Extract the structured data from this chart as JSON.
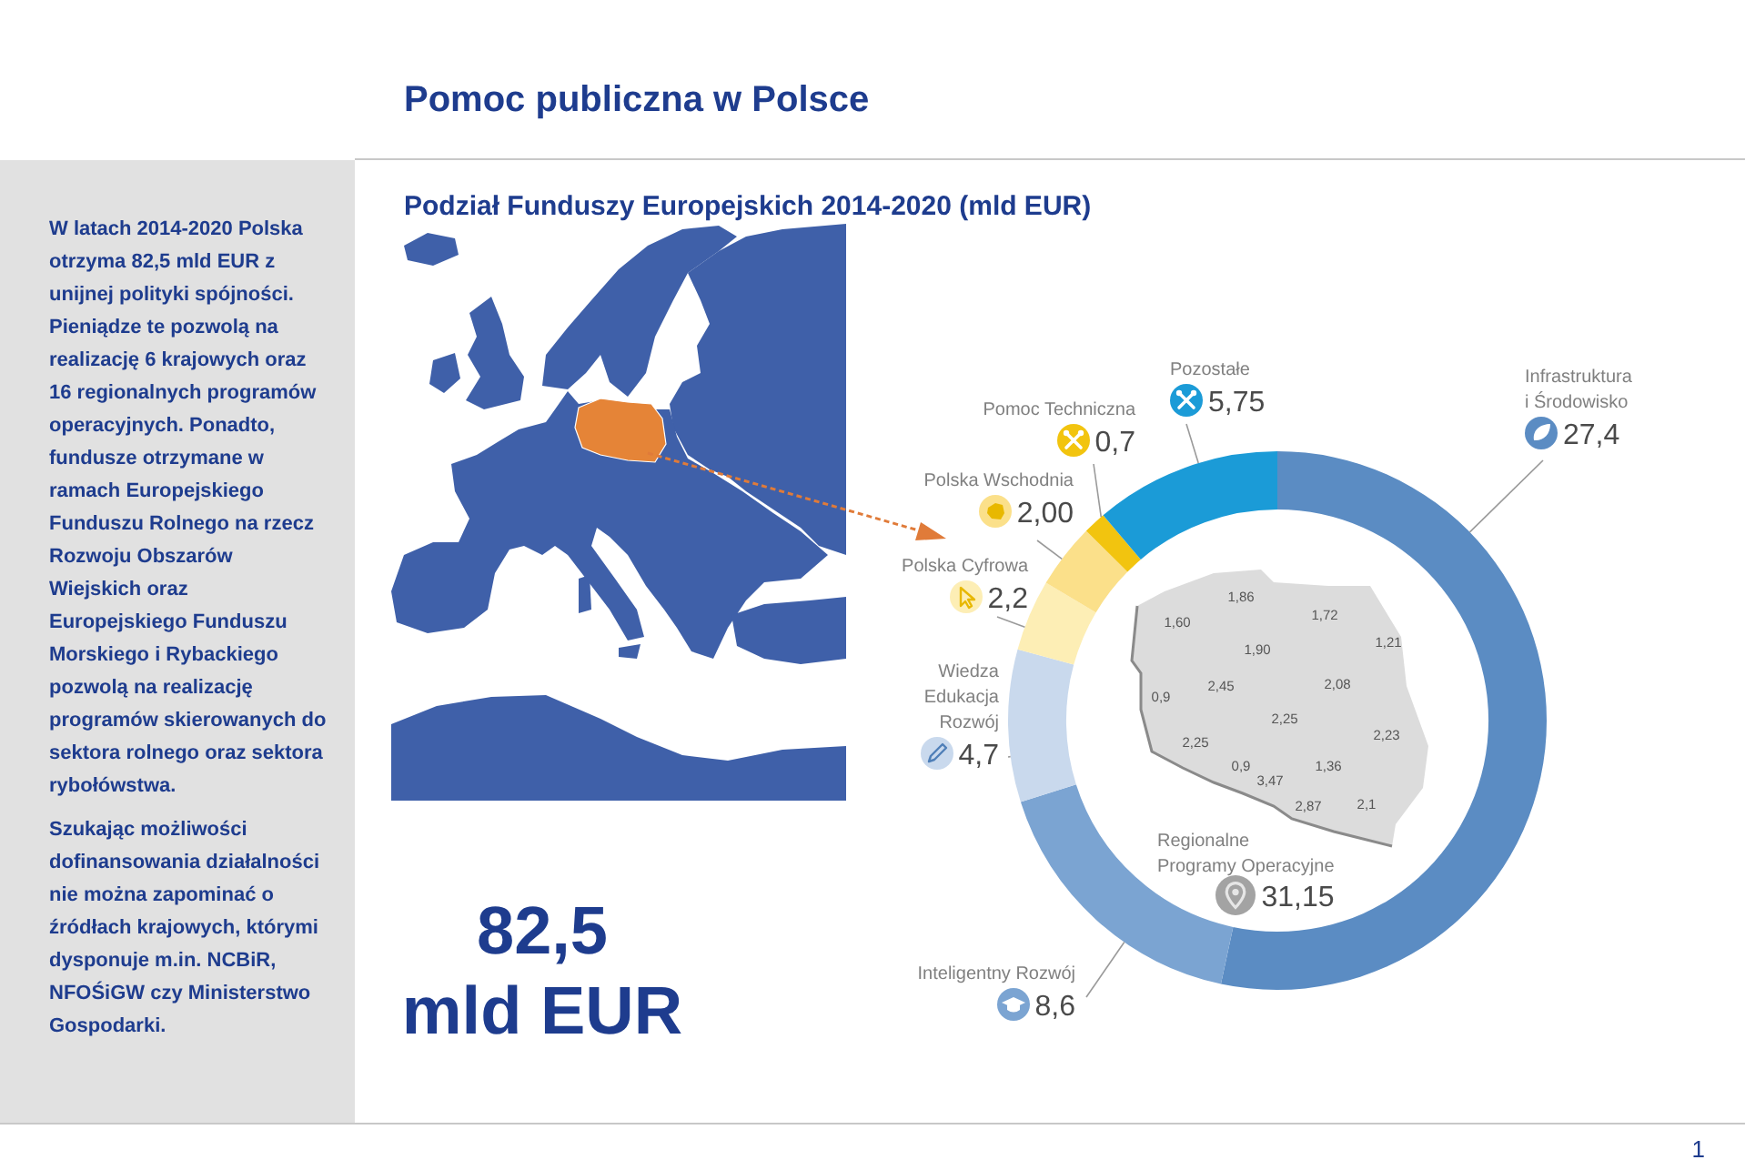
{
  "chart_data": {
    "type": "donut",
    "title": "Pomoc publiczna w Polsce",
    "subtitle": "Podział Funduszy Europejskich 2014-2020 (mld EUR)",
    "categories": [
      "Infrastruktura i Środowisko",
      "Inteligentny Rozwój",
      "Wiedza Edukacja Rozwój",
      "Polska Cyfrowa",
      "Polska Wschodnia",
      "Pomoc Techniczna",
      "Pozostałe"
    ],
    "values": [
      27.4,
      8.6,
      4.7,
      2.2,
      2.0,
      0.7,
      5.75
    ],
    "value_labels": [
      "27,4",
      "8,6",
      "4,7",
      "2,2",
      "2,00",
      "0,7",
      "5,75"
    ],
    "colors": [
      "#5b8cc3",
      "#7ba4d2",
      "#c9d9ed",
      "#fdeeb5",
      "#fbe08a",
      "#f2c40f",
      "#1b9bd7"
    ],
    "annotations": [
      "W latach 2014-2020 Polska otrzyma 82,5 mld EUR z unijnej polityki spójności. Pieniądze te pozwolą na realizację 6 krajowych oraz 16 regionalnych programów operacyjnych. Ponadto, fundusze otrzymane w ramach Europejskiego Funduszu Rolnego na rzecz Rozwoju Obszarów Wiejskich oraz Europejskiego Funduszu Morskiego i Rybackiego pozwolą na realizację programów skierowanych do sektora rolnego oraz sektora rybołówstwa.",
      "Szukając możliwości dofinansowania działalności nie można zapominać o źródłach krajowych, którymi dysponuje m.in. NCBiR, NFOŚiGW czy Ministerstwo Gospodarki.",
      "82,5 mld EUR",
      "Regionalne Programy Operacyjne",
      "31,15",
      "1,86",
      "1,72",
      "1,60",
      "1,21",
      "1,90",
      "2,08",
      "2,45",
      "0,9",
      "2,25",
      "2,23",
      "2,25",
      "0,9",
      "1,36",
      "3,47",
      "2,1",
      "2,87",
      "1"
    ]
  }
}
